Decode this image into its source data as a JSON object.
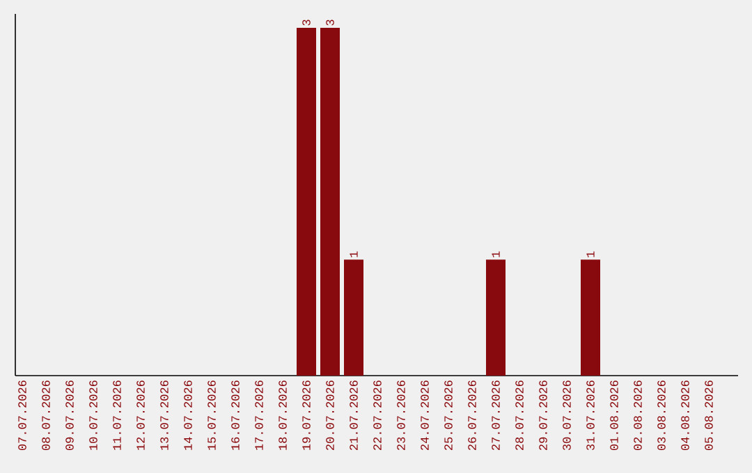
{
  "chart_data": {
    "type": "bar",
    "categories": [
      "07.07.2026",
      "08.07.2026",
      "09.07.2026",
      "10.07.2026",
      "11.07.2026",
      "12.07.2026",
      "13.07.2026",
      "14.07.2026",
      "15.07.2026",
      "16.07.2026",
      "17.07.2026",
      "18.07.2026",
      "19.07.2026",
      "20.07.2026",
      "21.07.2026",
      "22.07.2026",
      "23.07.2026",
      "24.07.2026",
      "25.07.2026",
      "26.07.2026",
      "27.07.2026",
      "28.07.2026",
      "29.07.2026",
      "30.07.2026",
      "31.07.2026",
      "01.08.2026",
      "02.08.2026",
      "03.08.2026",
      "04.08.2026",
      "05.08.2026"
    ],
    "values": [
      null,
      null,
      null,
      null,
      null,
      null,
      null,
      null,
      null,
      null,
      null,
      null,
      3,
      3,
      1,
      null,
      null,
      null,
      null,
      null,
      1,
      null,
      null,
      null,
      1,
      null,
      null,
      null,
      null,
      null
    ],
    "value_labels": [
      null,
      null,
      null,
      null,
      null,
      null,
      null,
      null,
      null,
      null,
      null,
      null,
      "3",
      "3",
      "1",
      null,
      null,
      null,
      null,
      null,
      "1",
      null,
      null,
      null,
      "1",
      null,
      null,
      null,
      null,
      null
    ],
    "color": "#880a0e",
    "tick_labels": "x",
    "grid": false
  }
}
